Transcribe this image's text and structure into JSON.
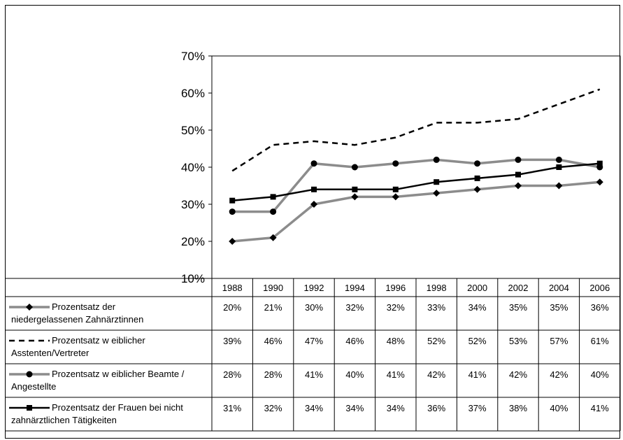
{
  "chart_data": {
    "type": "line",
    "categories": [
      "1988",
      "1990",
      "1992",
      "1994",
      "1996",
      "1998",
      "2000",
      "2002",
      "2004",
      "2006"
    ],
    "ylim": [
      10,
      70
    ],
    "y_ticks": [
      "10%",
      "20%",
      "30%",
      "40%",
      "50%",
      "60%",
      "70%"
    ],
    "grid": false,
    "legend_placement": "data table below chart",
    "series": [
      {
        "name": "Prozentsatz der niedergelassenen Zahnärztinnen",
        "label_lines": [
          "Prozentsatz der",
          "niedergelassenen Zahnärztinnen"
        ],
        "values": [
          20,
          21,
          30,
          32,
          32,
          33,
          34,
          35,
          35,
          36
        ],
        "labels": [
          "20%",
          "21%",
          "30%",
          "32%",
          "32%",
          "33%",
          "34%",
          "35%",
          "35%",
          "36%"
        ],
        "style": "gray-diamond",
        "color": "#8c8c8c"
      },
      {
        "name": "Prozentsatz w eiblicher Asstenten/Vertreter",
        "label_lines": [
          "Prozentsatz w eiblicher",
          "Asstenten/Vertreter"
        ],
        "values": [
          39,
          46,
          47,
          46,
          48,
          52,
          52,
          53,
          57,
          61
        ],
        "labels": [
          "39%",
          "46%",
          "47%",
          "46%",
          "48%",
          "52%",
          "52%",
          "53%",
          "57%",
          "61%"
        ],
        "style": "black-dashed",
        "color": "#000000"
      },
      {
        "name": "Prozentsatz w eiblicher Beamte / Angestellte",
        "label_lines": [
          "Prozentsatz w eiblicher Beamte /",
          "Angestellte"
        ],
        "values": [
          28,
          28,
          41,
          40,
          41,
          42,
          41,
          42,
          42,
          40
        ],
        "labels": [
          "28%",
          "28%",
          "41%",
          "40%",
          "41%",
          "42%",
          "41%",
          "42%",
          "42%",
          "40%"
        ],
        "style": "gray-circle",
        "color": "#8c8c8c"
      },
      {
        "name": "Prozentsatz der Frauen bei nicht zahnärztlichen Tätigkeiten",
        "label_lines": [
          "Prozentsatz der Frauen bei nicht",
          "zahnärztlichen Tätigkeiten"
        ],
        "values": [
          31,
          32,
          34,
          34,
          34,
          36,
          37,
          38,
          40,
          41
        ],
        "labels": [
          "31%",
          "32%",
          "34%",
          "34%",
          "34%",
          "36%",
          "37%",
          "38%",
          "40%",
          "41%"
        ],
        "style": "black-square",
        "color": "#000000"
      }
    ]
  }
}
